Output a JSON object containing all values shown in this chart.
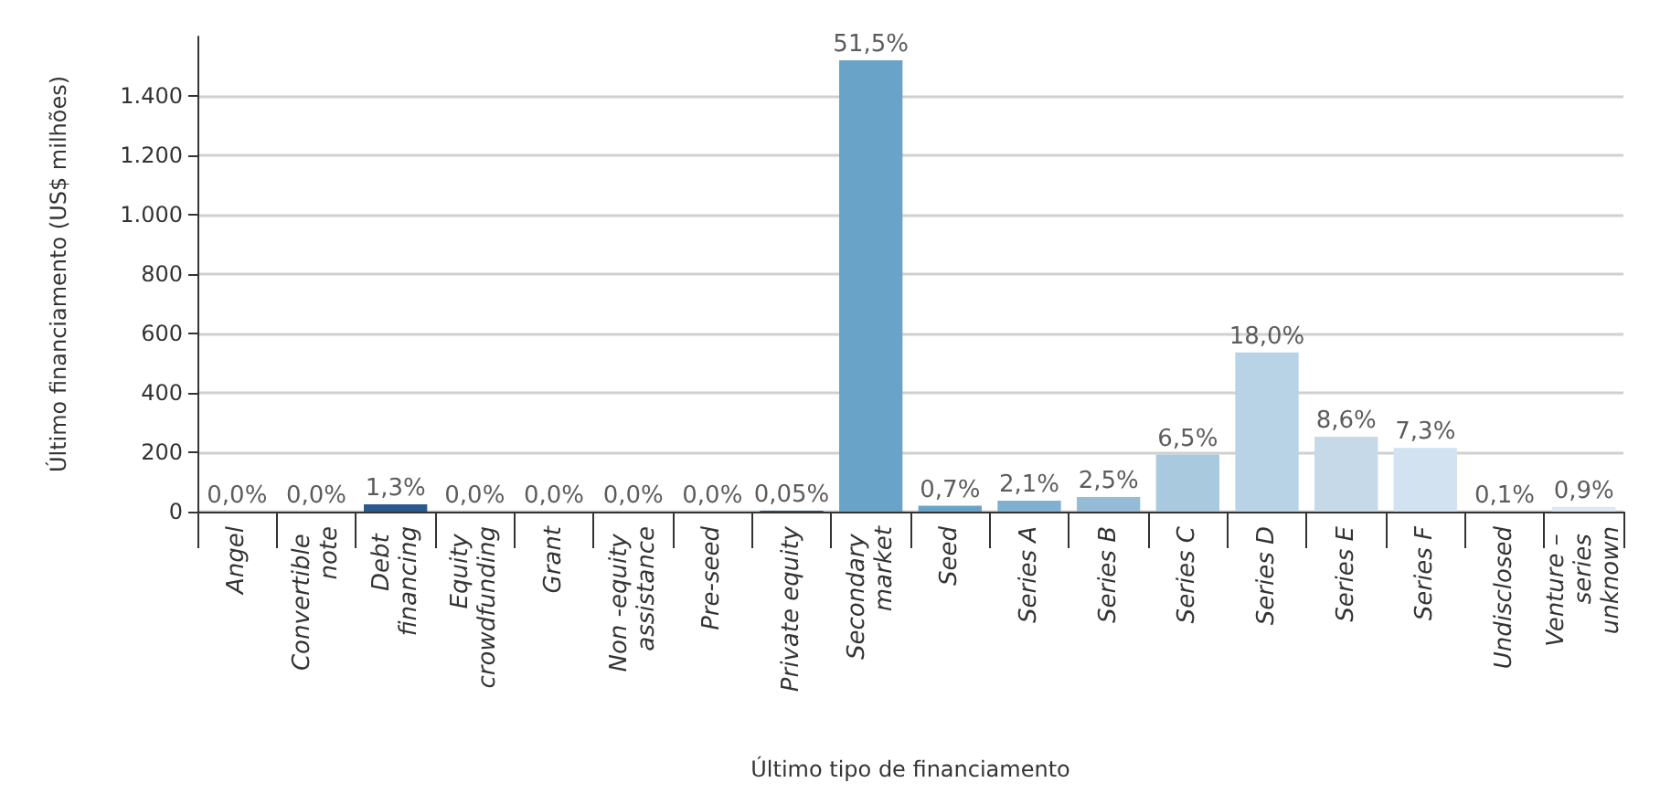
{
  "chart_data": {
    "type": "bar",
    "xlabel": "Último tipo de financiamento",
    "ylabel": "Último financiamento (US$ milhões)",
    "categories": [
      "Angel",
      "Convertible note",
      "Debt financing",
      "Equity crowdfunding",
      "Grant",
      "Non -equity assistance",
      "Pre-seed",
      "Private equity",
      "Secondary market",
      "Seed",
      "Series A",
      "Series B",
      "Series C",
      "Series D",
      "Series E",
      "Series F",
      "Undisclosed",
      "Venture – series unknown"
    ],
    "values": [
      0,
      0,
      25,
      0,
      0,
      0,
      0,
      3,
      1520,
      20,
      37,
      49,
      192,
      536,
      252,
      215,
      0,
      16
    ],
    "annotations": [
      {
        "text": "0,0%",
        "x": "Angel",
        "y": 0
      },
      {
        "text": "0,0%",
        "x": "Convertible note",
        "y": 0
      },
      {
        "text": "1,3%",
        "x": "Debt financing",
        "y": 25
      },
      {
        "text": "0,0%",
        "x": "Equity crowdfunding",
        "y": 0
      },
      {
        "text": "0,0%",
        "x": "Grant",
        "y": 0
      },
      {
        "text": "0,0%",
        "x": "Non -equity assistance",
        "y": 0
      },
      {
        "text": "0,0%",
        "x": "Pre-seed",
        "y": 0
      },
      {
        "text": "0,05%",
        "x": "Private equity",
        "y": 3
      },
      {
        "text": "51,5%",
        "x": "Secondary market",
        "y": 1520
      },
      {
        "text": "0,7%",
        "x": "Seed",
        "y": 20
      },
      {
        "text": "2,1%",
        "x": "Series A",
        "y": 37
      },
      {
        "text": "2,5%",
        "x": "Series B",
        "y": 49
      },
      {
        "text": "6,5%",
        "x": "Series C",
        "y": 192
      },
      {
        "text": "18,0%",
        "x": "Series D",
        "y": 536
      },
      {
        "text": "8,6%",
        "x": "Series E",
        "y": 252
      },
      {
        "text": "7,3%",
        "x": "Series F",
        "y": 215
      },
      {
        "text": "0,1%",
        "x": "Undisclosed",
        "y": 0
      },
      {
        "text": "0,9%",
        "x": "Venture – series unknown",
        "y": 16
      }
    ],
    "colors": [
      "#2b5a8f",
      "#2b5a8f",
      "#2b5a8f",
      "#2b5a8f",
      "#2b5a8f",
      "#2b5a8f",
      "#2b5a8f",
      "#2b5a8f",
      "#6aa3c8",
      "#6aa3c8",
      "#7fb0cf",
      "#94bcd6",
      "#a9c9de",
      "#b9d3e6",
      "#c5d9e9",
      "#d2e2f0",
      "#dde9f3",
      "#dde9f3"
    ],
    "ylim": [
      0,
      1600
    ],
    "yticks": [
      {
        "value": 0,
        "label": "0"
      },
      {
        "value": 200,
        "label": "200"
      },
      {
        "value": 400,
        "label": "400"
      },
      {
        "value": 600,
        "label": "600"
      },
      {
        "value": 800,
        "label": "800"
      },
      {
        "value": 1000,
        "label": "1.000"
      },
      {
        "value": 1200,
        "label": "1.200"
      },
      {
        "value": 1400,
        "label": "1.400"
      }
    ],
    "grid": "y"
  }
}
